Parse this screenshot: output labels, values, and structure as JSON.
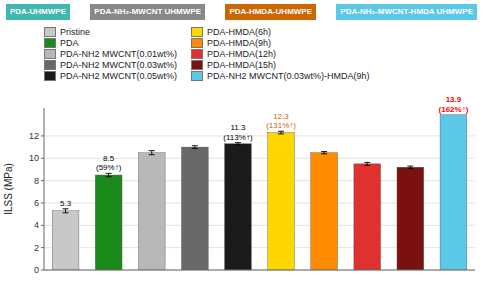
{
  "chart_data": {
    "type": "bar",
    "categories": [
      "Pristine",
      "PDA",
      "PDA-NH2 MWCNT(0.01wt%)",
      "PDA-NH2 MWCNT(0.03wt%)",
      "PDA-NH2 MWCNT(0.05wt%)",
      "PDA-HMDA(6h)",
      "PDA-HMDA(9h)",
      "PDA-HMDA(12h)",
      "PDA-HMDA(15h)",
      "PDA-NH2 MWCNT(0.03wt%)-HMDA(9h)"
    ],
    "values": [
      5.3,
      8.5,
      10.5,
      11.0,
      11.3,
      12.3,
      10.5,
      9.5,
      9.2,
      13.9
    ],
    "errors": [
      0.18,
      0.15,
      0.18,
      0.12,
      0.1,
      0.12,
      0.1,
      0.13,
      0.1,
      0.0
    ],
    "colors": [
      "#c8c8c8",
      "#1a8a1a",
      "#b8b8b8",
      "#686868",
      "#1a1a1a",
      "#ffd700",
      "#ff8c00",
      "#e03030",
      "#7a1010",
      "#5cc8e8"
    ],
    "ylabel": "ILSS (MPa)",
    "ylim": [
      0,
      14.5
    ],
    "yticks": [
      0,
      2,
      4,
      6,
      8,
      10,
      12
    ],
    "grid": true,
    "legend": "upper left",
    "tick_labels": "y",
    "annotations": [
      {
        "text": "5.3",
        "category": "Pristine",
        "color": "#000000"
      },
      {
        "text": "8.5\n(59%↑)",
        "category": "PDA",
        "color": "#000000"
      },
      {
        "text": "11.3\n(113%↑)",
        "category": "PDA-NH2 MWCNT(0.05wt%)",
        "color": "#000000"
      },
      {
        "text": "12.3\n(131%↑)",
        "category": "PDA-HMDA(6h)",
        "color": "#cc6600"
      },
      {
        "text": "13.9",
        "category": "PDA-NH2 MWCNT(0.03wt%)-HMDA(9h)",
        "color": "#ff0000"
      },
      {
        "text": "(162%↑)",
        "category": "PDA-NH2 MWCNT(0.03wt%)-HMDA(9h)",
        "color": "#ff0000"
      },
      {
        "text": "PDA-UHMWPE",
        "color": "#40b8b0"
      },
      {
        "text": "PDA-NH₂-MWCNT UHMWPE",
        "color": "#888888"
      },
      {
        "text": "PDA-HMDA-UHMWPE",
        "color": "#cc6600"
      },
      {
        "text": "PDA-NH₂-MWCNT-HMDA UHMWPE",
        "color": "#5cc8e8"
      }
    ]
  }
}
